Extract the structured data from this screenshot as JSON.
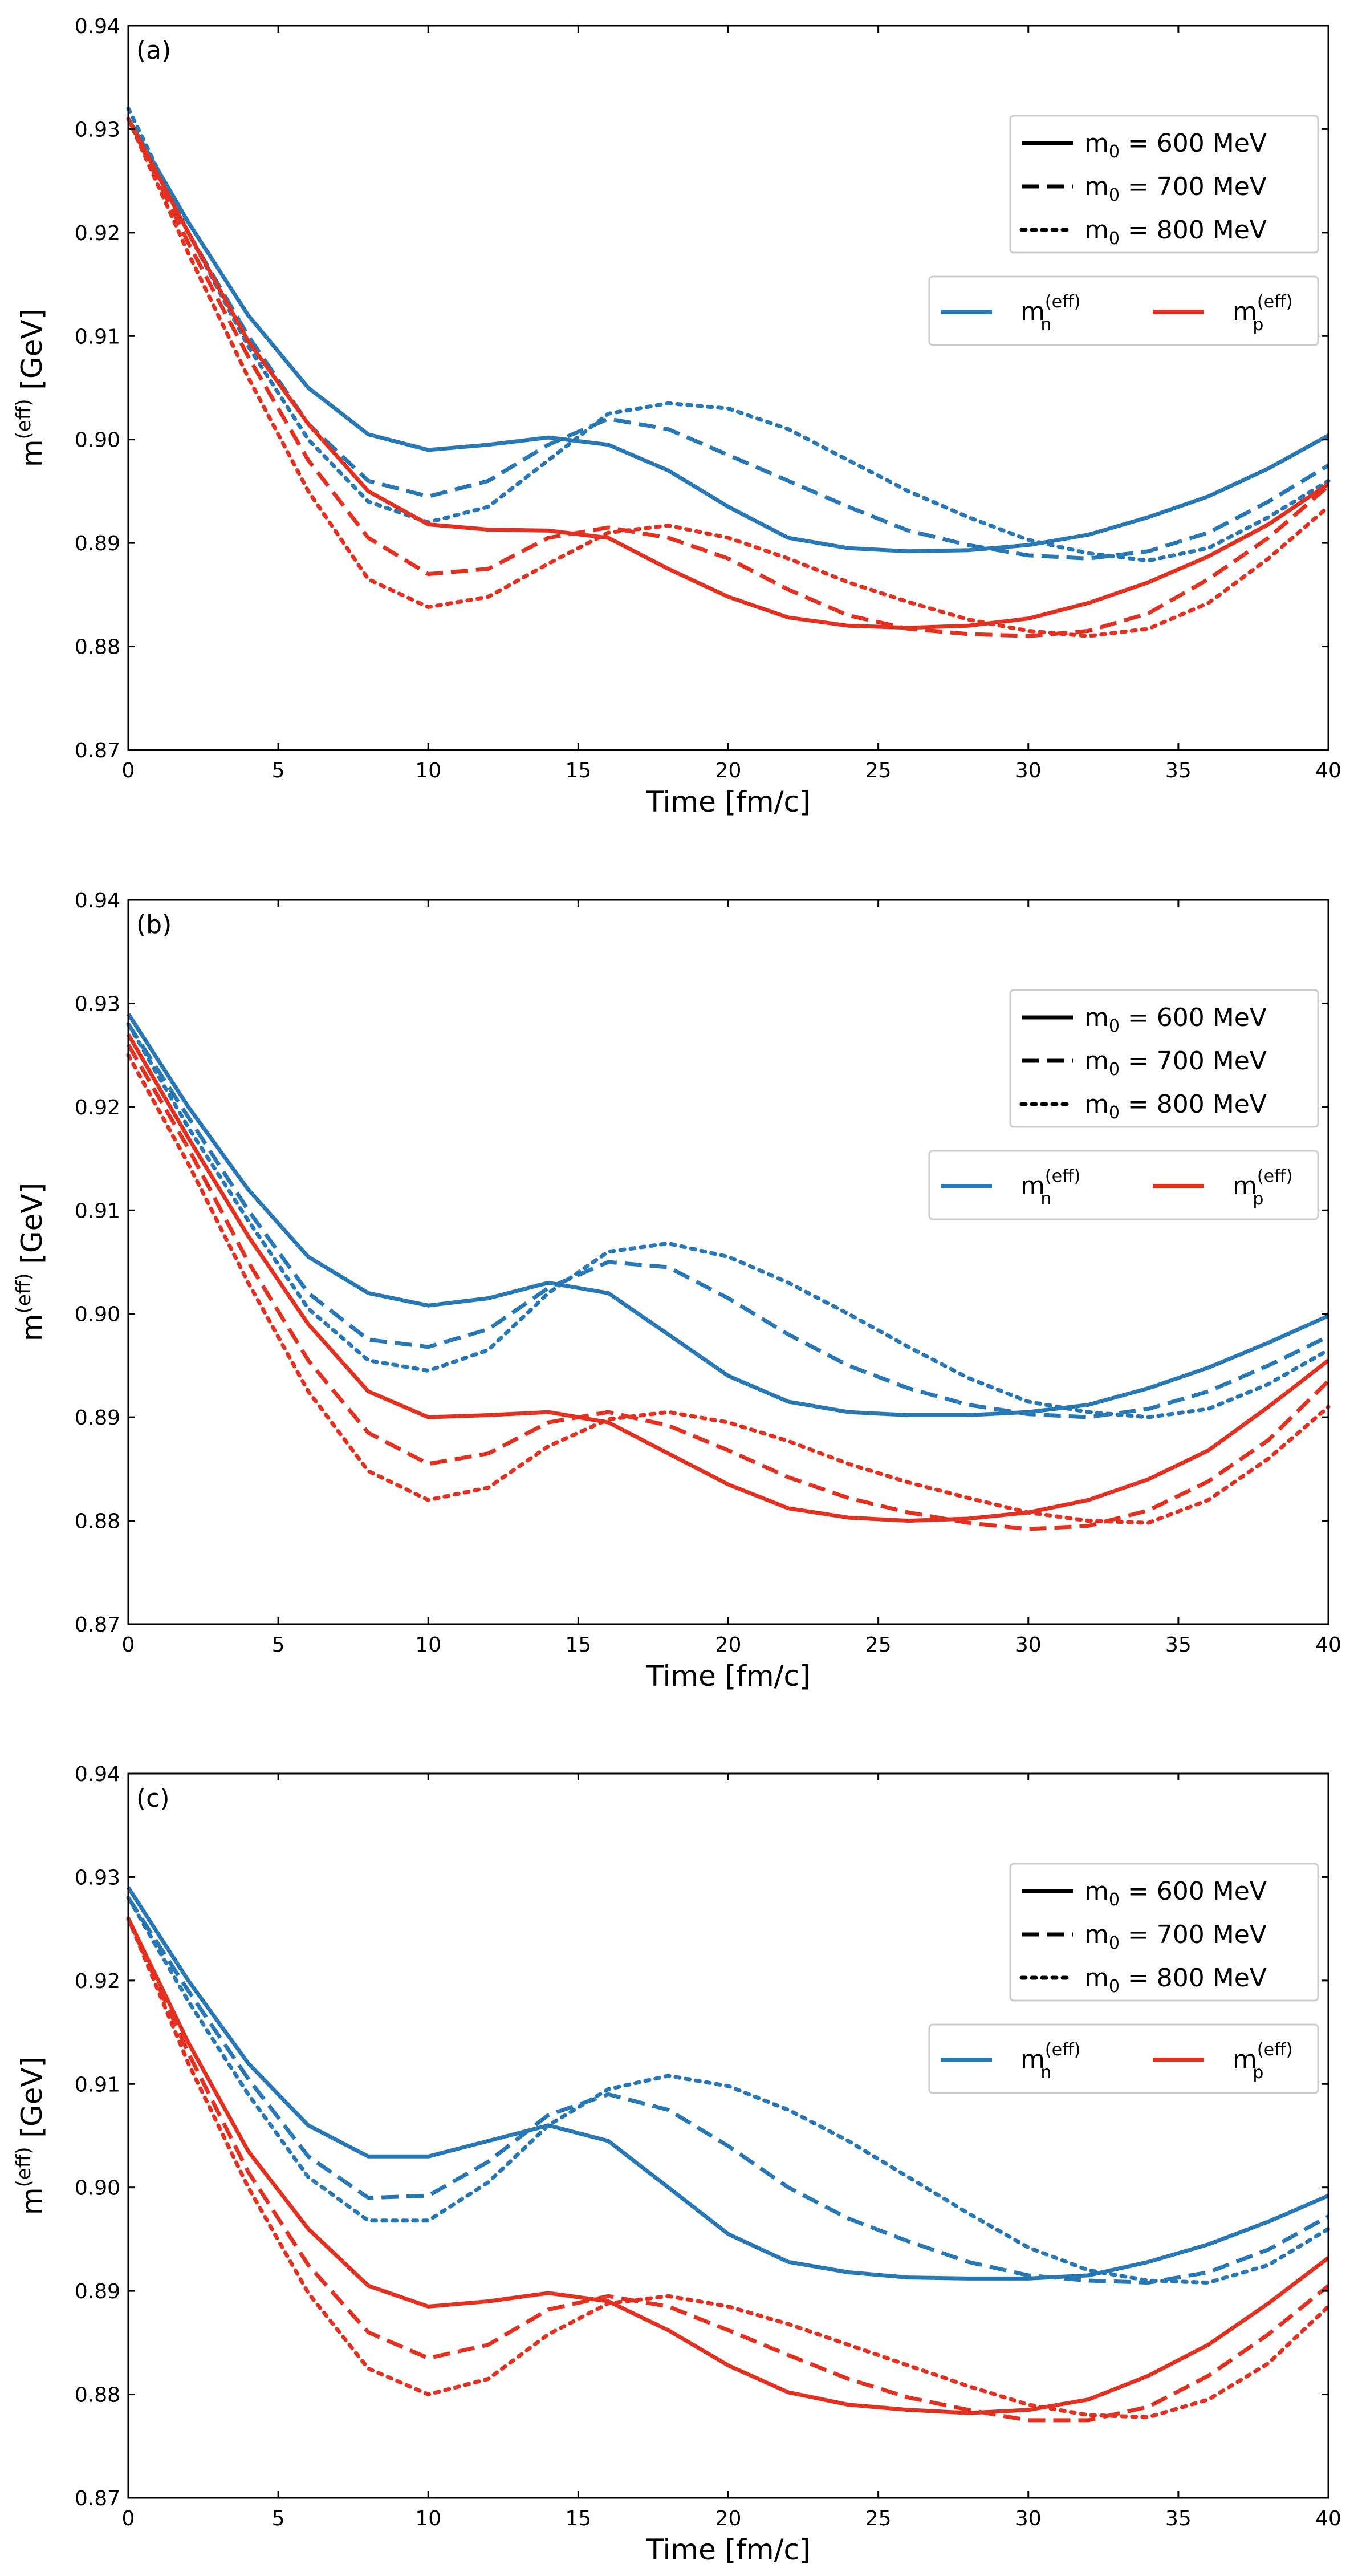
{
  "chart_data": [
    {
      "type": "line",
      "panel": "(a)",
      "xlabel": "Time [fm/c]",
      "ylabel": "m(eff) [GeV]",
      "xlim": [
        0,
        40
      ],
      "ylim": [
        0.87,
        0.94
      ],
      "xticks": [
        "0",
        "5",
        "10",
        "15",
        "20",
        "25",
        "30",
        "35",
        "40"
      ],
      "yticks": [
        "0.87",
        "0.88",
        "0.89",
        "0.90",
        "0.91",
        "0.92",
        "0.93",
        "0.94"
      ],
      "series": [
        {
          "name": "n, m0 = 600 MeV",
          "particle": "n",
          "m0": 600,
          "style": "solid",
          "x": [
            0,
            2,
            4,
            6,
            8,
            10,
            12,
            14,
            16,
            18,
            20,
            22,
            24,
            26,
            28,
            30,
            32,
            34,
            36,
            38,
            40
          ],
          "y": [
            0.931,
            0.921,
            0.912,
            0.905,
            0.9005,
            0.899,
            0.8995,
            0.9002,
            0.8995,
            0.897,
            0.8935,
            0.8905,
            0.8895,
            0.8892,
            0.8893,
            0.8898,
            0.8908,
            0.8925,
            0.8945,
            0.8972,
            0.9004
          ]
        },
        {
          "name": "n, m0 = 700 MeV",
          "particle": "n",
          "m0": 700,
          "style": "dashed",
          "x": [
            0,
            2,
            4,
            6,
            8,
            10,
            12,
            14,
            16,
            18,
            20,
            22,
            24,
            26,
            28,
            30,
            32,
            34,
            36,
            38,
            40
          ],
          "y": [
            0.931,
            0.92,
            0.91,
            0.9015,
            0.896,
            0.8945,
            0.896,
            0.8995,
            0.902,
            0.901,
            0.8985,
            0.896,
            0.8935,
            0.8912,
            0.8898,
            0.8888,
            0.8885,
            0.8892,
            0.891,
            0.894,
            0.8975
          ]
        },
        {
          "name": "n, m0 = 800 MeV",
          "particle": "n",
          "m0": 800,
          "style": "dotted",
          "x": [
            0,
            2,
            4,
            6,
            8,
            10,
            12,
            14,
            16,
            18,
            20,
            22,
            24,
            26,
            28,
            30,
            32,
            34,
            36,
            38,
            40
          ],
          "y": [
            0.932,
            0.92,
            0.909,
            0.9,
            0.894,
            0.892,
            0.8935,
            0.898,
            0.9025,
            0.9035,
            0.903,
            0.901,
            0.898,
            0.895,
            0.8925,
            0.8903,
            0.889,
            0.8883,
            0.8895,
            0.8925,
            0.896
          ]
        },
        {
          "name": "p, m0 = 600 MeV",
          "particle": "p",
          "m0": 600,
          "style": "solid",
          "x": [
            0,
            2,
            4,
            6,
            8,
            10,
            12,
            14,
            16,
            18,
            20,
            22,
            24,
            26,
            28,
            30,
            32,
            34,
            36,
            38,
            40
          ],
          "y": [
            0.931,
            0.92,
            0.9095,
            0.9015,
            0.895,
            0.8918,
            0.8913,
            0.8912,
            0.8905,
            0.8875,
            0.8848,
            0.8828,
            0.882,
            0.8818,
            0.882,
            0.8827,
            0.8842,
            0.8862,
            0.8887,
            0.8918,
            0.8957
          ]
        },
        {
          "name": "p, m0 = 700 MeV",
          "particle": "p",
          "m0": 700,
          "style": "dashed",
          "x": [
            0,
            2,
            4,
            6,
            8,
            10,
            12,
            14,
            16,
            18,
            20,
            22,
            24,
            26,
            28,
            30,
            32,
            34,
            36,
            38,
            40
          ],
          "y": [
            0.931,
            0.919,
            0.908,
            0.898,
            0.8905,
            0.887,
            0.8875,
            0.8905,
            0.8915,
            0.8905,
            0.8885,
            0.8855,
            0.883,
            0.8817,
            0.8812,
            0.881,
            0.8815,
            0.8832,
            0.8865,
            0.8905,
            0.8955
          ]
        },
        {
          "name": "p, m0 = 800 MeV",
          "particle": "p",
          "m0": 800,
          "style": "dotted",
          "x": [
            0,
            2,
            4,
            6,
            8,
            10,
            12,
            14,
            16,
            18,
            20,
            22,
            24,
            26,
            28,
            30,
            32,
            34,
            36,
            38,
            40
          ],
          "y": [
            0.931,
            0.918,
            0.906,
            0.895,
            0.8865,
            0.8838,
            0.8848,
            0.888,
            0.891,
            0.8917,
            0.8905,
            0.8885,
            0.8862,
            0.8843,
            0.8826,
            0.8815,
            0.881,
            0.8817,
            0.8842,
            0.8885,
            0.8935
          ]
        }
      ]
    },
    {
      "type": "line",
      "panel": "(b)",
      "xlabel": "Time [fm/c]",
      "ylabel": "m(eff) [GeV]",
      "xlim": [
        0,
        40
      ],
      "ylim": [
        0.87,
        0.94
      ],
      "xticks": [
        "0",
        "5",
        "10",
        "15",
        "20",
        "25",
        "30",
        "35",
        "40"
      ],
      "yticks": [
        "0.87",
        "0.88",
        "0.89",
        "0.90",
        "0.91",
        "0.92",
        "0.93",
        "0.94"
      ],
      "series": [
        {
          "name": "n, m0 = 600 MeV",
          "particle": "n",
          "m0": 600,
          "style": "solid",
          "x": [
            0,
            2,
            4,
            6,
            8,
            10,
            12,
            14,
            16,
            18,
            20,
            22,
            24,
            26,
            28,
            30,
            32,
            34,
            36,
            38,
            40
          ],
          "y": [
            0.929,
            0.92,
            0.912,
            0.9055,
            0.902,
            0.9008,
            0.9015,
            0.903,
            0.902,
            0.898,
            0.894,
            0.8915,
            0.8905,
            0.8902,
            0.8902,
            0.8905,
            0.8912,
            0.8928,
            0.8948,
            0.8972,
            0.8998
          ]
        },
        {
          "name": "n, m0 = 700 MeV",
          "particle": "n",
          "m0": 700,
          "style": "dashed",
          "x": [
            0,
            2,
            4,
            6,
            8,
            10,
            12,
            14,
            16,
            18,
            20,
            22,
            24,
            26,
            28,
            30,
            32,
            34,
            36,
            38,
            40
          ],
          "y": [
            0.928,
            0.919,
            0.91,
            0.902,
            0.8975,
            0.8968,
            0.8985,
            0.9025,
            0.905,
            0.9045,
            0.9015,
            0.898,
            0.895,
            0.8928,
            0.8912,
            0.8903,
            0.89,
            0.8908,
            0.8925,
            0.895,
            0.8978
          ]
        },
        {
          "name": "n, m0 = 800 MeV",
          "particle": "n",
          "m0": 800,
          "style": "dotted",
          "x": [
            0,
            2,
            4,
            6,
            8,
            10,
            12,
            14,
            16,
            18,
            20,
            22,
            24,
            26,
            28,
            30,
            32,
            34,
            36,
            38,
            40
          ],
          "y": [
            0.928,
            0.918,
            0.909,
            0.9005,
            0.8955,
            0.8945,
            0.8965,
            0.902,
            0.906,
            0.9068,
            0.9055,
            0.903,
            0.9,
            0.8968,
            0.8938,
            0.8915,
            0.8905,
            0.89,
            0.8908,
            0.8932,
            0.8965
          ]
        },
        {
          "name": "p, m0 = 600 MeV",
          "particle": "p",
          "m0": 600,
          "style": "solid",
          "x": [
            0,
            2,
            4,
            6,
            8,
            10,
            12,
            14,
            16,
            18,
            20,
            22,
            24,
            26,
            28,
            30,
            32,
            34,
            36,
            38,
            40
          ],
          "y": [
            0.927,
            0.917,
            0.9075,
            0.899,
            0.8925,
            0.89,
            0.8902,
            0.8905,
            0.8895,
            0.8865,
            0.8835,
            0.8812,
            0.8803,
            0.88,
            0.8802,
            0.8808,
            0.882,
            0.884,
            0.8868,
            0.891,
            0.8955
          ]
        },
        {
          "name": "p, m0 = 700 MeV",
          "particle": "p",
          "m0": 700,
          "style": "dashed",
          "x": [
            0,
            2,
            4,
            6,
            8,
            10,
            12,
            14,
            16,
            18,
            20,
            22,
            24,
            26,
            28,
            30,
            32,
            34,
            36,
            38,
            40
          ],
          "y": [
            0.926,
            0.916,
            0.905,
            0.8955,
            0.8885,
            0.8855,
            0.8865,
            0.8895,
            0.8905,
            0.8892,
            0.8868,
            0.8842,
            0.8822,
            0.8808,
            0.8798,
            0.8792,
            0.8795,
            0.881,
            0.8838,
            0.8878,
            0.8935
          ]
        },
        {
          "name": "p, m0 = 800 MeV",
          "particle": "p",
          "m0": 800,
          "style": "dotted",
          "x": [
            0,
            2,
            4,
            6,
            8,
            10,
            12,
            14,
            16,
            18,
            20,
            22,
            24,
            26,
            28,
            30,
            32,
            34,
            36,
            38,
            40
          ],
          "y": [
            0.925,
            0.9145,
            0.903,
            0.8925,
            0.8848,
            0.882,
            0.8832,
            0.8872,
            0.8898,
            0.8905,
            0.8895,
            0.8877,
            0.8855,
            0.8837,
            0.8822,
            0.8808,
            0.88,
            0.8798,
            0.882,
            0.886,
            0.891
          ]
        }
      ]
    },
    {
      "type": "line",
      "panel": "(c)",
      "xlabel": "Time [fm/c]",
      "ylabel": "m(eff) [GeV]",
      "xlim": [
        0,
        40
      ],
      "ylim": [
        0.87,
        0.94
      ],
      "xticks": [
        "0",
        "5",
        "10",
        "15",
        "20",
        "25",
        "30",
        "35",
        "40"
      ],
      "yticks": [
        "0.87",
        "0.88",
        "0.89",
        "0.90",
        "0.91",
        "0.92",
        "0.93",
        "0.94"
      ],
      "series": [
        {
          "name": "n, m0 = 600 MeV",
          "particle": "n",
          "m0": 600,
          "style": "solid",
          "x": [
            0,
            2,
            4,
            6,
            8,
            10,
            12,
            14,
            16,
            18,
            20,
            22,
            24,
            26,
            28,
            30,
            32,
            34,
            36,
            38,
            40
          ],
          "y": [
            0.929,
            0.92,
            0.912,
            0.906,
            0.903,
            0.903,
            0.9045,
            0.906,
            0.9045,
            0.9,
            0.8955,
            0.8928,
            0.8918,
            0.8913,
            0.8912,
            0.8912,
            0.8915,
            0.8928,
            0.8945,
            0.8967,
            0.8992
          ]
        },
        {
          "name": "n, m0 = 700 MeV",
          "particle": "n",
          "m0": 700,
          "style": "dashed",
          "x": [
            0,
            2,
            4,
            6,
            8,
            10,
            12,
            14,
            16,
            18,
            20,
            22,
            24,
            26,
            28,
            30,
            32,
            34,
            36,
            38,
            40
          ],
          "y": [
            0.928,
            0.919,
            0.9105,
            0.903,
            0.899,
            0.8992,
            0.9025,
            0.907,
            0.909,
            0.9075,
            0.904,
            0.9,
            0.897,
            0.8948,
            0.8928,
            0.8915,
            0.891,
            0.8908,
            0.8918,
            0.894,
            0.8972
          ]
        },
        {
          "name": "n, m0 = 800 MeV",
          "particle": "n",
          "m0": 800,
          "style": "dotted",
          "x": [
            0,
            2,
            4,
            6,
            8,
            10,
            12,
            14,
            16,
            18,
            20,
            22,
            24,
            26,
            28,
            30,
            32,
            34,
            36,
            38,
            40
          ],
          "y": [
            0.928,
            0.918,
            0.909,
            0.901,
            0.8968,
            0.8968,
            0.9005,
            0.906,
            0.9095,
            0.9108,
            0.9098,
            0.9075,
            0.9045,
            0.901,
            0.8975,
            0.8942,
            0.892,
            0.891,
            0.8908,
            0.8925,
            0.896
          ]
        },
        {
          "name": "p, m0 = 600 MeV",
          "particle": "p",
          "m0": 600,
          "style": "solid",
          "x": [
            0,
            2,
            4,
            6,
            8,
            10,
            12,
            14,
            16,
            18,
            20,
            22,
            24,
            26,
            28,
            30,
            32,
            34,
            36,
            38,
            40
          ],
          "y": [
            0.926,
            0.914,
            0.9035,
            0.896,
            0.8905,
            0.8885,
            0.889,
            0.8898,
            0.889,
            0.8862,
            0.8828,
            0.8802,
            0.879,
            0.8785,
            0.8782,
            0.8785,
            0.8795,
            0.8818,
            0.8848,
            0.8888,
            0.8932
          ]
        },
        {
          "name": "p, m0 = 700 MeV",
          "particle": "p",
          "m0": 700,
          "style": "dashed",
          "x": [
            0,
            2,
            4,
            6,
            8,
            10,
            12,
            14,
            16,
            18,
            20,
            22,
            24,
            26,
            28,
            30,
            32,
            34,
            36,
            38,
            40
          ],
          "y": [
            0.926,
            0.913,
            0.9015,
            0.8925,
            0.886,
            0.8835,
            0.8848,
            0.8882,
            0.8895,
            0.8885,
            0.8862,
            0.8838,
            0.8815,
            0.8797,
            0.8785,
            0.8775,
            0.8775,
            0.8788,
            0.8818,
            0.8858,
            0.8905
          ]
        },
        {
          "name": "p, m0 = 800 MeV",
          "particle": "p",
          "m0": 800,
          "style": "dotted",
          "x": [
            0,
            2,
            4,
            6,
            8,
            10,
            12,
            14,
            16,
            18,
            20,
            22,
            24,
            26,
            28,
            30,
            32,
            34,
            36,
            38,
            40
          ],
          "y": [
            0.926,
            0.912,
            0.9,
            0.8898,
            0.8825,
            0.88,
            0.8815,
            0.8858,
            0.8888,
            0.8895,
            0.8885,
            0.8868,
            0.8848,
            0.8828,
            0.8808,
            0.879,
            0.878,
            0.8778,
            0.8795,
            0.883,
            0.8885
          ]
        }
      ]
    }
  ],
  "legend": {
    "m0_entries": [
      {
        "label": "m0 = 600 MeV",
        "style": "solid"
      },
      {
        "label": "m0 = 700 MeV",
        "style": "dashed"
      },
      {
        "label": "m0 = 800 MeV",
        "style": "dotted"
      }
    ],
    "particle_entries": [
      {
        "label": "m(eff) n",
        "particle": "n"
      },
      {
        "label": "m(eff) p",
        "particle": "p"
      }
    ]
  },
  "colors": {
    "n": "#2878b5",
    "p": "#e23120",
    "axis": "#000000"
  }
}
